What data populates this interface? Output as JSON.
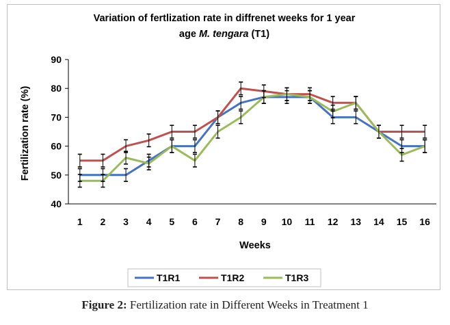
{
  "chart_data": {
    "type": "line",
    "title_line1": "Variation of fertlization rate in diffrenet weeks for 1 year",
    "title_line2_prefix": "age ",
    "title_line2_italic": "M. tengara",
    "title_line2_suffix": " (T1)",
    "xlabel": "Weeks",
    "ylabel": "Fertilization rate (%)",
    "ylim": [
      40,
      90
    ],
    "yticks": [
      40,
      50,
      60,
      70,
      80,
      90
    ],
    "x": [
      1,
      2,
      3,
      4,
      5,
      6,
      7,
      8,
      9,
      10,
      11,
      12,
      13,
      14,
      15,
      16
    ],
    "series": [
      {
        "name": "T1R1",
        "color": "#4472c4",
        "values": [
          50,
          50,
          50,
          55,
          60,
          60,
          70,
          75,
          77,
          77,
          77,
          70,
          70,
          65,
          60,
          60
        ]
      },
      {
        "name": "T1R2",
        "color": "#c0504d",
        "values": [
          55,
          55,
          60,
          62,
          65,
          65,
          70,
          80,
          79,
          78,
          78,
          75,
          75,
          65,
          65,
          65
        ]
      },
      {
        "name": "T1R3",
        "color": "#9bbb59",
        "values": [
          48,
          48,
          56,
          54,
          60,
          55,
          65,
          70,
          77,
          78,
          77,
          72,
          75,
          65,
          57,
          60
        ]
      }
    ],
    "error_bar_half": 2.2
  },
  "caption": {
    "label": "Figure 2:",
    "text": " Fertilization rate in Different Weeks in Treatment 1"
  }
}
